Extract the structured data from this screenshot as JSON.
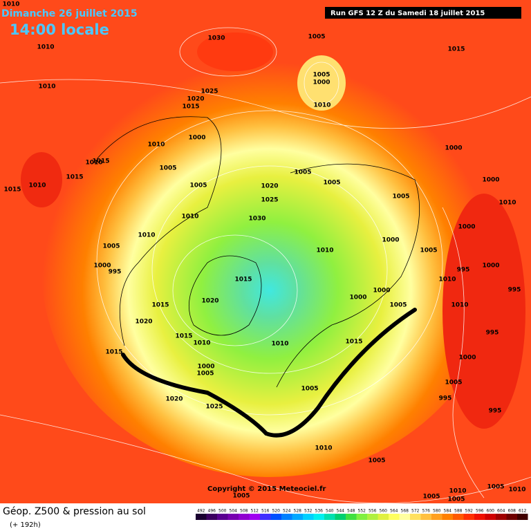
{
  "header": {
    "date": "Dimanche 26 juillet 2015",
    "time": "14:00 locale",
    "run": "Run GFS 12 Z du Samedi 18 juillet 2015"
  },
  "copyright": "Copyright © 2015 Meteociel.fr",
  "footer": {
    "title": "Géop. Z500 & pression au sol",
    "lead": "(+ 192h)"
  },
  "scale": {
    "values": [
      492,
      496,
      500,
      504,
      508,
      512,
      516,
      520,
      524,
      528,
      532,
      536,
      540,
      544,
      548,
      552,
      556,
      560,
      564,
      568,
      572,
      576,
      580,
      584,
      588,
      592,
      596,
      600,
      604,
      608,
      612
    ],
    "colors": [
      "#1a0030",
      "#3c0060",
      "#5a0090",
      "#7800b0",
      "#9000d0",
      "#a000f0",
      "#4030ff",
      "#0050ff",
      "#0080ff",
      "#00a8ff",
      "#00d0ff",
      "#00f0f0",
      "#00e0b0",
      "#00d070",
      "#40e040",
      "#80f040",
      "#b0f040",
      "#e0f040",
      "#ffff60",
      "#ffffa0",
      "#ffe060",
      "#ffc040",
      "#ffa020",
      "#ff8000",
      "#ff5a00",
      "#ff3000",
      "#f01000",
      "#d00000",
      "#a00000",
      "#700000",
      "#400000"
    ]
  },
  "isobar_labels": [
    "1010",
    "1010",
    "1030",
    "1005",
    "1015",
    "1010",
    "1005",
    "1000",
    "1025",
    "1020",
    "1015",
    "1010",
    "1000",
    "1010",
    "1005",
    "1000",
    "1010",
    "1015",
    "1010",
    "1015",
    "1015",
    "1005",
    "1005",
    "1005",
    "1020",
    "1025",
    "1030",
    "1005",
    "1000",
    "1010",
    "1010",
    "1000",
    "1010",
    "1000",
    "1005",
    "1010",
    "1005",
    "1000",
    "995",
    "995",
    "1000",
    "1015",
    "1010",
    "995",
    "1000",
    "1000",
    "1020",
    "1015",
    "1005",
    "1010",
    "1020",
    "995",
    "1015",
    "1010",
    "1010",
    "1015",
    "1015",
    "1000",
    "1000",
    "1005",
    "1005",
    "1005",
    "1020",
    "995",
    "1025",
    "995",
    "1010",
    "1005",
    "1005",
    "1005",
    "1010",
    "1005",
    "1005",
    "1010"
  ]
}
